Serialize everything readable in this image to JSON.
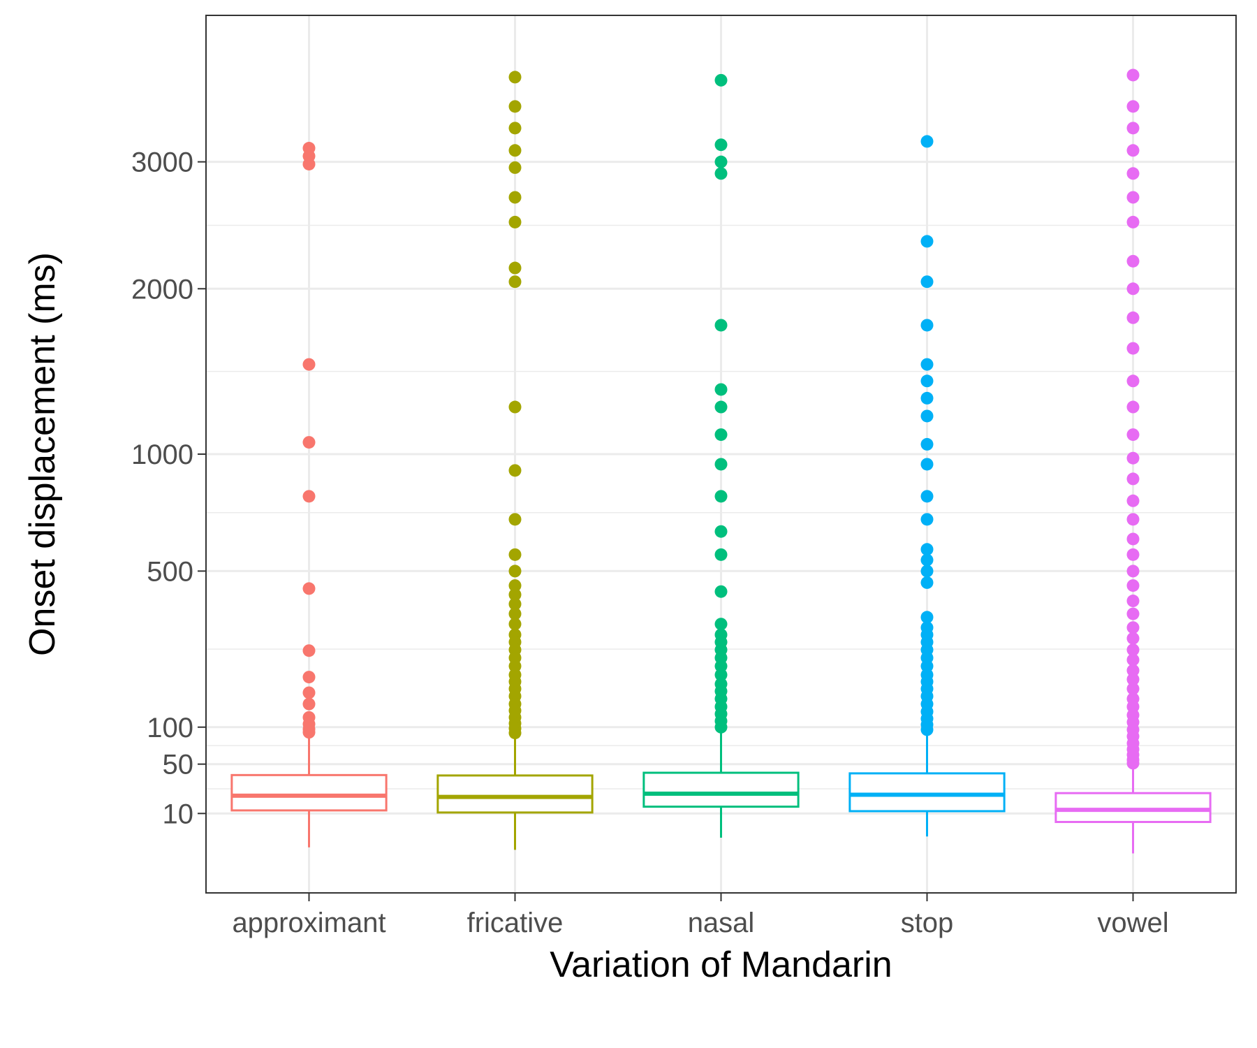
{
  "chart_data": {
    "type": "box",
    "title": "",
    "xlabel": "Variation of Mandarin",
    "ylabel": "Onset displacement (ms)",
    "y_scale": "sqrt",
    "ylim": [
      0,
      4000
    ],
    "y_ticks": [
      10,
      50,
      100,
      500,
      1000,
      2000,
      3000
    ],
    "grid": true,
    "legend": "none",
    "categories": [
      "approximant",
      "fricative",
      "nasal",
      "stop",
      "vowel"
    ],
    "series": [
      {
        "category": "approximant",
        "color": "#F8766D",
        "whisker_low": 0.23,
        "q1": 11.6,
        "median": 20.9,
        "q3": 38.5,
        "whisker_high": 85,
        "outliers": [
          3120,
          3050,
          2980,
          1500,
          1060,
          800,
          440,
          258,
          195,
          162,
          140,
          116,
          105,
          97,
          92
        ]
      },
      {
        "category": "fricative",
        "color": "#A3A500",
        "whisker_low": 0.08,
        "q1": 10.5,
        "median": 20.0,
        "q3": 38.1,
        "whisker_high": 85,
        "outliers": [
          3780,
          3500,
          3300,
          3100,
          2950,
          2700,
          2500,
          2150,
          2050,
          1250,
          920,
          700,
          560,
          500,
          450,
          420,
          390,
          360,
          330,
          300,
          280,
          260,
          240,
          220,
          200,
          185,
          170,
          155,
          140,
          128,
          116,
          106,
          98,
          91
        ]
      },
      {
        "category": "nasal",
        "color": "#00BF7D",
        "whisker_low": 1.55,
        "q1": 13.7,
        "median": 22.4,
        "q3": 40.8,
        "whisker_high": 92,
        "outliers": [
          3750,
          3150,
          3000,
          2900,
          1750,
          1350,
          1250,
          1100,
          950,
          800,
          650,
          560,
          430,
          330,
          300,
          280,
          260,
          240,
          220,
          200,
          180,
          165,
          150,
          135,
          122,
          110,
          100
        ]
      },
      {
        "category": "stop",
        "color": "#00B0F6",
        "whisker_low": 1.8,
        "q1": 11.2,
        "median": 21.6,
        "q3": 40.2,
        "whisker_high": 92,
        "outliers": [
          3180,
          2350,
          2050,
          1750,
          1500,
          1400,
          1300,
          1200,
          1050,
          950,
          800,
          700,
          580,
          540,
          500,
          460,
          350,
          320,
          300,
          280,
          260,
          240,
          220,
          200,
          185,
          170,
          155,
          140,
          126,
          114,
          104,
          96
        ]
      },
      {
        "category": "vowel",
        "color": "#E76BF3",
        "whisker_low": 0.0,
        "q1": 6.2,
        "median": 11.9,
        "q3": 22.8,
        "whisker_high": 48,
        "outliers": [
          3800,
          3500,
          3300,
          3100,
          2900,
          2700,
          2500,
          2200,
          2000,
          1800,
          1600,
          1400,
          1250,
          1100,
          980,
          880,
          780,
          700,
          620,
          560,
          500,
          450,
          400,
          360,
          320,
          290,
          260,
          235,
          210,
          190,
          170,
          150,
          135,
          120,
          108,
          96,
          86,
          76,
          68,
          61,
          55,
          51
        ]
      }
    ]
  }
}
